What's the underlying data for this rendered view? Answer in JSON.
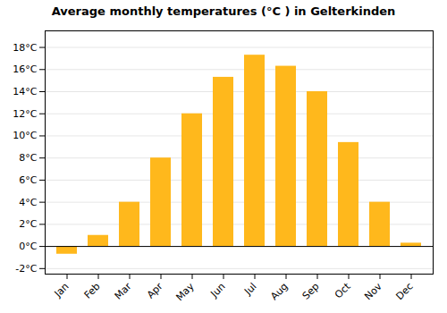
{
  "chart_data": {
    "type": "bar",
    "title": "Average monthly temperatures (°C ) in Gelterkinden",
    "categories": [
      "Jan",
      "Feb",
      "Mar",
      "Apr",
      "May",
      "Jun",
      "Jul",
      "Aug",
      "Sep",
      "Oct",
      "Nov",
      "Dec"
    ],
    "values": [
      -0.7,
      1.0,
      4.0,
      8.0,
      12.0,
      15.3,
      17.3,
      16.3,
      14.0,
      9.4,
      4.0,
      0.3
    ],
    "color": "#FFB81C",
    "ylim": [
      -2.5,
      19.5
    ],
    "yticks": [
      {
        "value": -2,
        "label": "-2°C"
      },
      {
        "value": 0,
        "label": "0°C"
      },
      {
        "value": 2,
        "label": "2°C"
      },
      {
        "value": 4,
        "label": "4°C"
      },
      {
        "value": 6,
        "label": "6°C"
      },
      {
        "value": 8,
        "label": "8°C"
      },
      {
        "value": 10,
        "label": "10°C"
      },
      {
        "value": 12,
        "label": "12°C"
      },
      {
        "value": 14,
        "label": "14°C"
      },
      {
        "value": 16,
        "label": "16°C"
      },
      {
        "value": 18,
        "label": "18°C"
      }
    ],
    "grid": true
  }
}
